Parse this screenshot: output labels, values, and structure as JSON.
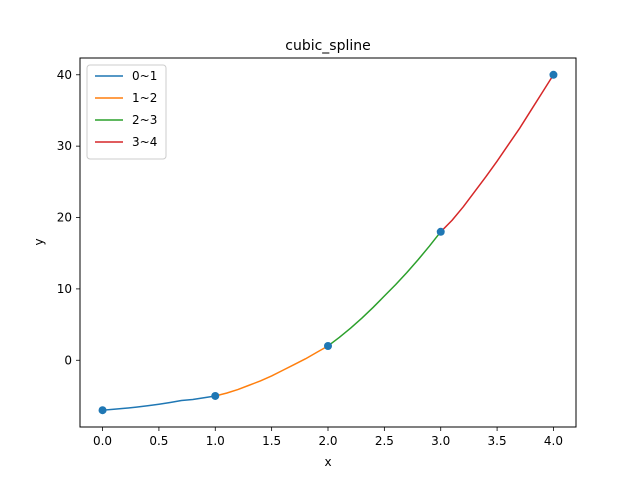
{
  "chart_data": {
    "type": "line",
    "title": "cubic_spline",
    "xlabel": "x",
    "ylabel": "y",
    "xlim": [
      -0.2,
      4.2
    ],
    "ylim": [
      -9.35,
      42.35
    ],
    "x_ticks": [
      0.0,
      0.5,
      1.0,
      1.5,
      2.0,
      2.5,
      3.0,
      3.5,
      4.0
    ],
    "x_tick_labels": [
      "0.0",
      "0.5",
      "1.0",
      "1.5",
      "2.0",
      "2.5",
      "3.0",
      "3.5",
      "4.0"
    ],
    "y_ticks": [
      0,
      10,
      20,
      30,
      40
    ],
    "y_tick_labels": [
      "0",
      "10",
      "20",
      "30",
      "40"
    ],
    "grid": false,
    "legend_position": "top-left",
    "points": {
      "x": [
        0,
        1,
        2,
        3,
        4
      ],
      "y": [
        -7,
        -5,
        2,
        18,
        40
      ],
      "color": "#1f77b4"
    },
    "series": [
      {
        "name": "0~1",
        "color": "#1f77b4",
        "x": [
          0.0,
          0.1,
          0.2,
          0.3,
          0.4,
          0.5,
          0.6,
          0.7,
          0.8,
          0.9,
          1.0
        ],
        "y": [
          -7.0,
          -6.87,
          -6.73,
          -6.57,
          -6.38,
          -6.16,
          -5.91,
          -5.63,
          -5.5,
          -5.25,
          -5.0
        ]
      },
      {
        "name": "1~2",
        "color": "#ff7f0e",
        "x": [
          1.0,
          1.1,
          1.2,
          1.3,
          1.4,
          1.5,
          1.6,
          1.7,
          1.8,
          1.9,
          2.0
        ],
        "y": [
          -5.0,
          -4.6,
          -4.1,
          -3.5,
          -2.9,
          -2.2,
          -1.4,
          -0.6,
          0.2,
          1.1,
          2.0
        ]
      },
      {
        "name": "2~3",
        "color": "#2ca02c",
        "x": [
          2.0,
          2.1,
          2.2,
          2.3,
          2.4,
          2.5,
          2.6,
          2.7,
          2.8,
          2.9,
          3.0
        ],
        "y": [
          2.0,
          3.2,
          4.5,
          5.9,
          7.4,
          9.0,
          10.6,
          12.3,
          14.1,
          16.0,
          18.0
        ]
      },
      {
        "name": "3~4",
        "color": "#d62728",
        "x": [
          3.0,
          3.1,
          3.2,
          3.3,
          3.4,
          3.5,
          3.6,
          3.7,
          3.8,
          3.9,
          4.0
        ],
        "y": [
          18.0,
          19.6,
          21.5,
          23.6,
          25.7,
          27.9,
          30.2,
          32.5,
          35.0,
          37.5,
          40.0
        ]
      }
    ]
  }
}
